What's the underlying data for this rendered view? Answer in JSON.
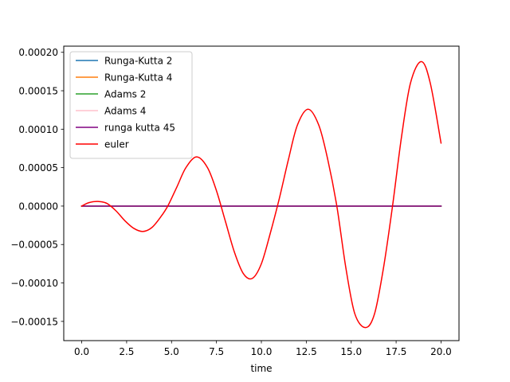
{
  "chart_data": {
    "type": "line",
    "title": "",
    "xlabel": "time",
    "ylabel": "",
    "xlim": [
      -1.0,
      21.0
    ],
    "ylim": [
      -0.000175,
      0.000208
    ],
    "xticks": [
      0.0,
      2.5,
      5.0,
      7.5,
      10.0,
      12.5,
      15.0,
      17.5,
      20.0
    ],
    "xtick_labels": [
      "0.0",
      "2.5",
      "5.0",
      "7.5",
      "10.0",
      "12.5",
      "15.0",
      "17.5",
      "20.0"
    ],
    "yticks": [
      -0.00015,
      -0.0001,
      -5e-05,
      0.0,
      5e-05,
      0.0001,
      0.00015,
      0.0002
    ],
    "ytick_labels": [
      "−0.00015",
      "−0.00010",
      "−0.00005",
      "0.00000",
      "0.00005",
      "0.00010",
      "0.00015",
      "0.00020"
    ],
    "grid": false,
    "legend_position": "top-left",
    "series": [
      {
        "name": "Runga-Kutta 2",
        "color": "#1f77b4",
        "x": [
          0,
          20
        ],
        "y": [
          0,
          0
        ]
      },
      {
        "name": "Runga-Kutta 4",
        "color": "#ff7f0e",
        "x": [
          0,
          20
        ],
        "y": [
          0,
          0
        ]
      },
      {
        "name": "Adams 2",
        "color": "#2ca02c",
        "x": [
          0,
          20
        ],
        "y": [
          0,
          0
        ]
      },
      {
        "name": "Adams 4",
        "color": "#ffc0cb",
        "x": [
          0,
          20
        ],
        "y": [
          0,
          0
        ]
      },
      {
        "name": "runga kutta 45",
        "color": "#800080",
        "x": [
          0,
          20
        ],
        "y": [
          0,
          0
        ]
      },
      {
        "name": "euler",
        "color": "#ff0000",
        "x": [
          0.0,
          0.4,
          0.9,
          1.4,
          1.9,
          2.4,
          2.9,
          3.4,
          3.9,
          4.4,
          4.8,
          5.3,
          5.8,
          6.4,
          7.0,
          7.5,
          8.0,
          8.5,
          9.0,
          9.5,
          10.0,
          10.5,
          11.0,
          11.5,
          12.0,
          12.6,
          13.2,
          13.7,
          14.2,
          14.7,
          15.2,
          15.8,
          16.3,
          16.8,
          17.3,
          17.8,
          18.3,
          18.9,
          19.4,
          20.0
        ],
        "y": [
          0.0,
          4.5e-06,
          6e-06,
          3.5e-06,
          -6e-06,
          -1.9e-05,
          -2.9e-05,
          -3.3e-05,
          -2.8e-05,
          -1.4e-05,
          5e-07,
          2.5e-05,
          5e-05,
          6.4e-05,
          5e-05,
          2e-05,
          -2e-05,
          -6e-05,
          -8.8e-05,
          -9.4e-05,
          -7.5e-05,
          -3.5e-05,
          1e-05,
          6e-05,
          0.000105,
          0.000126,
          0.000105,
          6e-05,
          0.0,
          -8e-05,
          -0.00014,
          -0.000158,
          -0.00014,
          -8e-05,
          0.0,
          9e-05,
          0.00016,
          0.000188,
          0.00016,
          8.2e-05
        ]
      }
    ]
  }
}
